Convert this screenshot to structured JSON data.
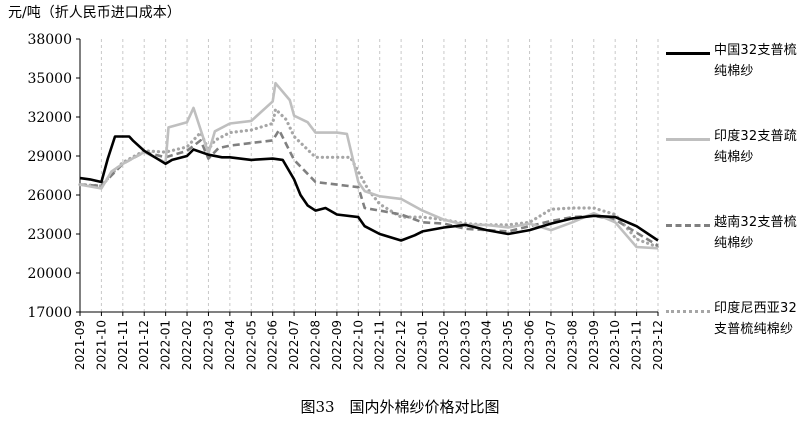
{
  "unit_label": "元/吨（折人民币进口成本）",
  "caption": "图33　国内外棉纱价格对比图",
  "legend": [
    {
      "label": "中国32支普梳纯棉纱",
      "color": "#000000",
      "style": "solid"
    },
    {
      "label": "印度32支普疏纯棉纱",
      "color": "#bfbfbf",
      "style": "solid"
    },
    {
      "label": "越南32支普梳纯棉纱",
      "color": "#808080",
      "style": "dashed"
    },
    {
      "label": "印度尼西亚32支普梳纯棉纱",
      "color": "#a6a6a6",
      "style": "dotted"
    }
  ],
  "chart_data": {
    "type": "line",
    "title": "",
    "xlabel": "",
    "ylabel": "元/吨（折人民币进口成本）",
    "ylim": [
      17000,
      38000
    ],
    "yticks": [
      17000,
      20000,
      23000,
      26000,
      29000,
      32000,
      35000,
      38000
    ],
    "xlim": [
      "2021-09",
      "2023-12"
    ],
    "xticks": [
      "2021-09",
      "2021-10",
      "2021-11",
      "2021-12",
      "2022-01",
      "2022-02",
      "2022-03",
      "2022-04",
      "2022-05",
      "2022-06",
      "2022-07",
      "2022-08",
      "2022-09",
      "2022-10",
      "2022-11",
      "2022-12",
      "2023-01",
      "2023-02",
      "2023-03",
      "2023-04",
      "2023-05",
      "2023-06",
      "2023-07",
      "2023-08",
      "2023-09",
      "2023-10",
      "2023-11",
      "2023-12"
    ],
    "grid": "vertical dashed",
    "legend_position": "right",
    "series": [
      {
        "name": "中国32支普梳纯棉纱",
        "color": "#000000",
        "style": "solid",
        "x": [
          "2021-09",
          "2021-09-15",
          "2021-10",
          "2021-10-10",
          "2021-10-20",
          "2021-11",
          "2021-11-10",
          "2021-11-15",
          "2021-12",
          "2022-01",
          "2022-01-10",
          "2022-02",
          "2022-02-10",
          "2022-03",
          "2022-03-20",
          "2022-04",
          "2022-05",
          "2022-06",
          "2022-06-15",
          "2022-07",
          "2022-07-10",
          "2022-07-20",
          "2022-08",
          "2022-08-15",
          "2022-09",
          "2022-10",
          "2022-10-10",
          "2022-11",
          "2022-12",
          "2022-12-20",
          "2023-01",
          "2023-02",
          "2023-03",
          "2023-04",
          "2023-05",
          "2023-06",
          "2023-07",
          "2023-08",
          "2023-09",
          "2023-10",
          "2023-11",
          "2023-12"
        ],
        "y": [
          27300,
          27200,
          27000,
          28800,
          30500,
          30500,
          30500,
          30200,
          29400,
          28400,
          28700,
          29000,
          29500,
          29100,
          28900,
          28900,
          28700,
          28800,
          28700,
          27200,
          26000,
          25200,
          24800,
          25000,
          24500,
          24300,
          23600,
          23000,
          22500,
          22900,
          23200,
          23500,
          23700,
          23300,
          23000,
          23300,
          23800,
          24200,
          24400,
          24300,
          23600,
          22500
        ]
      },
      {
        "name": "印度32支普疏纯棉纱",
        "color": "#bfbfbf",
        "style": "solid",
        "x": [
          "2021-09",
          "2021-10",
          "2021-10-15",
          "2021-11",
          "2021-12",
          "2022-01",
          "2022-01-05",
          "2022-02",
          "2022-02-10",
          "2022-03",
          "2022-03-10",
          "2022-04",
          "2022-05",
          "2022-06",
          "2022-06-05",
          "2022-06-25",
          "2022-07",
          "2022-07-20",
          "2022-08",
          "2022-09",
          "2022-09-15",
          "2022-10",
          "2022-10-10",
          "2022-11",
          "2022-12",
          "2023-01",
          "2023-02",
          "2023-03",
          "2023-04",
          "2023-05",
          "2023-06",
          "2023-07",
          "2023-08",
          "2023-09",
          "2023-10",
          "2023-11",
          "2023-12"
        ],
        "y": [
          26800,
          26500,
          27800,
          28400,
          29300,
          28500,
          31200,
          31600,
          32700,
          29200,
          30900,
          31500,
          31700,
          33200,
          34600,
          33300,
          32100,
          31600,
          30800,
          30800,
          30700,
          27000,
          26300,
          25900,
          25700,
          24800,
          24100,
          23700,
          23700,
          23500,
          23800,
          23300,
          23900,
          24600,
          23900,
          22000,
          21900
        ]
      },
      {
        "name": "越南32支普梳纯棉纱",
        "color": "#808080",
        "style": "dashed",
        "x": [
          "2021-09",
          "2021-10",
          "2021-10-15",
          "2021-11",
          "2021-12",
          "2022-01",
          "2022-02",
          "2022-02-20",
          "2022-03",
          "2022-03-15",
          "2022-04",
          "2022-05",
          "2022-06",
          "2022-06-10",
          "2022-07",
          "2022-08",
          "2022-09",
          "2022-10",
          "2022-10-10",
          "2022-11",
          "2022-12",
          "2023-01",
          "2023-02",
          "2023-03",
          "2023-04",
          "2023-05",
          "2023-06",
          "2023-07",
          "2023-08",
          "2023-09",
          "2023-10",
          "2023-11",
          "2023-12"
        ],
        "y": [
          26800,
          26700,
          27500,
          28400,
          29300,
          28900,
          29400,
          30200,
          28800,
          29600,
          29800,
          30000,
          30200,
          31000,
          28700,
          27000,
          26800,
          26600,
          25000,
          24800,
          24500,
          23900,
          23800,
          23400,
          23300,
          23200,
          23600,
          24000,
          24300,
          24400,
          24100,
          23100,
          22100
        ]
      },
      {
        "name": "印度尼西亚32支普梳纯棉纱",
        "color": "#a6a6a6",
        "style": "dotted",
        "x": [
          "2021-09",
          "2021-10",
          "2021-10-15",
          "2021-11",
          "2021-12",
          "2022-01",
          "2022-02",
          "2022-02-20",
          "2022-03",
          "2022-03-10",
          "2022-04",
          "2022-05",
          "2022-06",
          "2022-06-05",
          "2022-06-20",
          "2022-07",
          "2022-08",
          "2022-09",
          "2022-09-20",
          "2022-10",
          "2022-10-15",
          "2022-11",
          "2022-12",
          "2023-01",
          "2023-02",
          "2023-03",
          "2023-04",
          "2023-05",
          "2023-06",
          "2023-07",
          "2023-08",
          "2023-09",
          "2023-10",
          "2023-11",
          "2023-12"
        ],
        "y": [
          26800,
          26700,
          27600,
          28500,
          29400,
          29300,
          29700,
          30800,
          29500,
          30200,
          30800,
          31000,
          31500,
          32600,
          31800,
          30500,
          28900,
          28900,
          28900,
          27800,
          26400,
          25300,
          24300,
          24300,
          24100,
          23800,
          23700,
          23700,
          23900,
          24900,
          25000,
          25000,
          24500,
          22600,
          22000
        ]
      }
    ]
  }
}
